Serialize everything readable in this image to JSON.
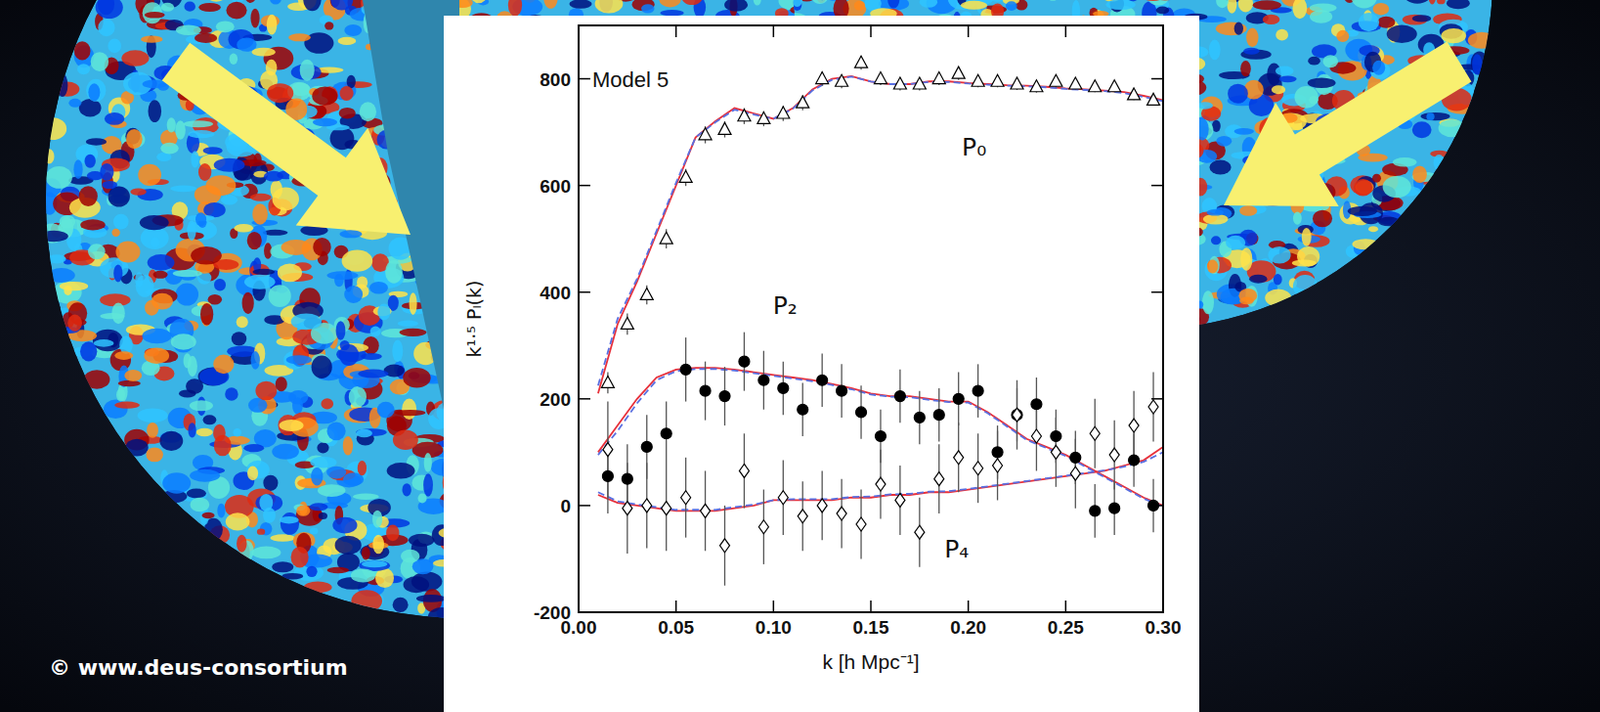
{
  "chart_data": {
    "type": "scatter",
    "title": "Model 5",
    "x_label": "k [h Mpc⁻¹]",
    "y_label": "k¹·⁵ Pₗ(k)",
    "xlim": [
      0,
      0.3
    ],
    "ylim": [
      -200,
      900
    ],
    "xticks": [
      {
        "value": 0,
        "label": "0.00"
      },
      {
        "value": 0.05,
        "label": "0.05"
      },
      {
        "value": 0.1,
        "label": "0.10"
      },
      {
        "value": 0.15,
        "label": "0.15"
      },
      {
        "value": 0.2,
        "label": "0.20"
      },
      {
        "value": 0.25,
        "label": "0.25"
      },
      {
        "value": 0.3,
        "label": "0.30"
      }
    ],
    "yticks": [
      -200,
      0,
      200,
      400,
      600,
      800
    ],
    "grid": false,
    "annotations": [
      {
        "text": "P₀",
        "x": 0.203,
        "y": 672
      },
      {
        "text": "P₂",
        "x": 0.106,
        "y": 375
      },
      {
        "text": "P₄",
        "x": 0.194,
        "y": -80
      }
    ],
    "series": [
      {
        "name": "P₀",
        "type": "scatter",
        "color": "#000000",
        "marker": "open-triangle",
        "x": [
          0.015,
          0.025,
          0.035,
          0.045,
          0.055,
          0.065,
          0.075,
          0.085,
          0.095,
          0.105,
          0.115,
          0.125,
          0.135,
          0.145,
          0.155,
          0.165,
          0.175,
          0.185,
          0.195,
          0.205,
          0.215,
          0.225,
          0.235,
          0.245,
          0.255,
          0.265,
          0.275,
          0.285,
          0.295
        ],
        "values": [
          230,
          340,
          395,
          500,
          615,
          695,
          705,
          730,
          725,
          735,
          755,
          800,
          795,
          830,
          800,
          790,
          790,
          800,
          810,
          795,
          795,
          790,
          785,
          795,
          790,
          785,
          785,
          770,
          760
        ],
        "errors": [
          20,
          20,
          18,
          18,
          16,
          16,
          15,
          15,
          14,
          14,
          14,
          13,
          13,
          13,
          12,
          12,
          12,
          12,
          12,
          11,
          11,
          11,
          11,
          11,
          10,
          10,
          10,
          10,
          10
        ]
      },
      {
        "name": "P₂",
        "type": "scatter",
        "color": "#000000",
        "marker": "circle",
        "x": [
          0.015,
          0.025,
          0.035,
          0.045,
          0.055,
          0.065,
          0.075,
          0.085,
          0.095,
          0.105,
          0.115,
          0.125,
          0.135,
          0.145,
          0.155,
          0.165,
          0.175,
          0.185,
          0.195,
          0.205,
          0.215,
          0.225,
          0.235,
          0.245,
          0.255,
          0.265,
          0.275,
          0.285,
          0.295
        ],
        "values": [
          55,
          50,
          110,
          135,
          255,
          215,
          205,
          270,
          235,
          220,
          180,
          235,
          215,
          175,
          130,
          205,
          165,
          170,
          200,
          215,
          100,
          170,
          190,
          130,
          90,
          -10,
          -5,
          85,
          0
        ],
        "errors": [
          70,
          65,
          60,
          60,
          60,
          55,
          55,
          55,
          55,
          50,
          50,
          50,
          50,
          50,
          50,
          50,
          50,
          50,
          50,
          50,
          50,
          50,
          50,
          50,
          50,
          50,
          50,
          50,
          50
        ]
      },
      {
        "name": "P₄",
        "type": "scatter",
        "color": "#000000",
        "marker": "open-diamond",
        "x": [
          0.015,
          0.025,
          0.035,
          0.045,
          0.055,
          0.065,
          0.075,
          0.085,
          0.095,
          0.105,
          0.115,
          0.125,
          0.135,
          0.145,
          0.155,
          0.165,
          0.175,
          0.185,
          0.195,
          0.205,
          0.215,
          0.225,
          0.235,
          0.245,
          0.255,
          0.265,
          0.275,
          0.285,
          0.295
        ],
        "values": [
          105,
          -5,
          0,
          -5,
          15,
          -10,
          -75,
          65,
          -40,
          15,
          -20,
          0,
          -15,
          -35,
          40,
          10,
          -50,
          50,
          90,
          70,
          75,
          170,
          130,
          100,
          60,
          135,
          95,
          150,
          185
        ],
        "errors": [
          90,
          85,
          80,
          80,
          75,
          75,
          75,
          70,
          70,
          70,
          65,
          65,
          65,
          65,
          65,
          65,
          65,
          65,
          65,
          65,
          65,
          65,
          65,
          65,
          65,
          65,
          65,
          65,
          65
        ]
      },
      {
        "type": "line",
        "color": "#e8303a",
        "line_style": "solid",
        "x": [
          0.01,
          0.02,
          0.03,
          0.04,
          0.05,
          0.06,
          0.07,
          0.08,
          0.09,
          0.1,
          0.11,
          0.12,
          0.13,
          0.14,
          0.15,
          0.16,
          0.17,
          0.18,
          0.19,
          0.2,
          0.21,
          0.22,
          0.23,
          0.24,
          0.25,
          0.26,
          0.27,
          0.28,
          0.29,
          0.3
        ],
        "values": [
          210,
          340,
          420,
          510,
          600,
          690,
          720,
          745,
          735,
          725,
          745,
          780,
          800,
          805,
          795,
          790,
          790,
          795,
          795,
          792,
          790,
          788,
          787,
          785,
          782,
          780,
          778,
          775,
          768,
          760
        ]
      },
      {
        "type": "line",
        "color": "#5a6fe0",
        "line_style": "dashed",
        "x": [
          0.01,
          0.02,
          0.03,
          0.04,
          0.05,
          0.06,
          0.07,
          0.08,
          0.09,
          0.1,
          0.11,
          0.12,
          0.13,
          0.14,
          0.15,
          0.16,
          0.17,
          0.18,
          0.19,
          0.2,
          0.21,
          0.22,
          0.23,
          0.24,
          0.25,
          0.26,
          0.27,
          0.28,
          0.29,
          0.3
        ],
        "values": [
          225,
          350,
          425,
          515,
          605,
          690,
          718,
          742,
          733,
          725,
          744,
          778,
          798,
          804,
          795,
          790,
          790,
          794,
          794,
          791,
          789,
          787,
          786,
          784,
          781,
          779,
          777,
          773,
          766,
          758
        ]
      },
      {
        "type": "line",
        "color": "#e8303a",
        "line_style": "solid",
        "x": [
          0.01,
          0.02,
          0.03,
          0.04,
          0.05,
          0.06,
          0.07,
          0.08,
          0.09,
          0.1,
          0.11,
          0.12,
          0.13,
          0.14,
          0.15,
          0.16,
          0.17,
          0.18,
          0.19,
          0.2,
          0.21,
          0.22,
          0.23,
          0.24,
          0.25,
          0.26,
          0.27,
          0.28,
          0.29,
          0.3
        ],
        "values": [
          100,
          150,
          200,
          240,
          255,
          258,
          258,
          255,
          250,
          245,
          240,
          235,
          228,
          220,
          210,
          205,
          205,
          200,
          195,
          195,
          175,
          150,
          125,
          110,
          95,
          75,
          55,
          35,
          15,
          0
        ]
      },
      {
        "type": "line",
        "color": "#5a6fe0",
        "line_style": "dashed",
        "x": [
          0.01,
          0.02,
          0.03,
          0.04,
          0.05,
          0.06,
          0.07,
          0.08,
          0.09,
          0.1,
          0.11,
          0.12,
          0.13,
          0.14,
          0.15,
          0.16,
          0.17,
          0.18,
          0.19,
          0.2,
          0.21,
          0.22,
          0.23,
          0.24,
          0.25,
          0.26,
          0.27,
          0.28,
          0.29,
          0.3
        ],
        "values": [
          95,
          140,
          192,
          235,
          252,
          256,
          256,
          253,
          248,
          243,
          238,
          233,
          226,
          218,
          208,
          204,
          203,
          198,
          194,
          193,
          173,
          148,
          123,
          108,
          93,
          73,
          53,
          33,
          13,
          -2
        ]
      },
      {
        "type": "line",
        "color": "#e8303a",
        "line_style": "solid",
        "x": [
          0.01,
          0.02,
          0.03,
          0.04,
          0.05,
          0.06,
          0.07,
          0.08,
          0.09,
          0.1,
          0.11,
          0.12,
          0.13,
          0.14,
          0.15,
          0.16,
          0.17,
          0.18,
          0.19,
          0.2,
          0.21,
          0.22,
          0.23,
          0.24,
          0.25,
          0.26,
          0.27,
          0.28,
          0.29,
          0.3
        ],
        "values": [
          20,
          5,
          0,
          -5,
          -10,
          -10,
          -10,
          -5,
          0,
          10,
          10,
          10,
          10,
          15,
          15,
          20,
          20,
          25,
          25,
          30,
          35,
          40,
          45,
          50,
          55,
          60,
          65,
          75,
          85,
          110
        ]
      },
      {
        "type": "line",
        "color": "#5a6fe0",
        "line_style": "dashed",
        "x": [
          0.01,
          0.02,
          0.03,
          0.04,
          0.05,
          0.06,
          0.07,
          0.08,
          0.09,
          0.1,
          0.11,
          0.12,
          0.13,
          0.14,
          0.15,
          0.16,
          0.17,
          0.18,
          0.19,
          0.2,
          0.21,
          0.22,
          0.23,
          0.24,
          0.25,
          0.26,
          0.27,
          0.28,
          0.29,
          0.3
        ],
        "values": [
          25,
          8,
          2,
          -3,
          -8,
          -8,
          -8,
          -3,
          2,
          10,
          12,
          12,
          12,
          16,
          17,
          21,
          22,
          26,
          27,
          31,
          36,
          41,
          46,
          51,
          56,
          61,
          66,
          73,
          82,
          100
        ]
      }
    ]
  },
  "background": {
    "credit": "© www.deus-consortium"
  }
}
